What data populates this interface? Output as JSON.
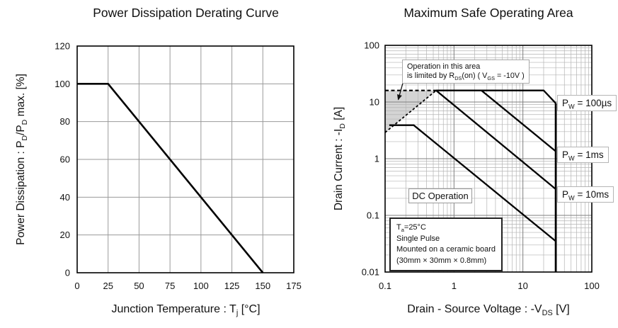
{
  "page": {
    "background": "#ffffff"
  },
  "colors": {
    "curve": "#000000",
    "frame": "#000000",
    "grid_left": "#9a9a9a",
    "grid_major": "#7f7f7f",
    "grid_minor": "#b4b4b4",
    "shade": "#d4d4d4",
    "box_border_light": "#a8a8a8",
    "box_border_dark": "#222222",
    "text": "#111111"
  },
  "chart_data": [
    {
      "type": "line",
      "scale": "linear",
      "title": "Power Dissipation Derating Curve",
      "xlabel": "Junction Temperature : Tj [°C]",
      "ylabel": "Power Dissipation : PD/PD max. [%]",
      "xlabel_parts": [
        {
          "t": "Junction Temperature : T"
        },
        {
          "s": "j"
        },
        {
          "t": " [°C]"
        }
      ],
      "ylabel_parts": [
        {
          "t": "Power Dissipation : P"
        },
        {
          "s": "D"
        },
        {
          "t": "/P"
        },
        {
          "s": "D"
        },
        {
          "t": " max. [%]"
        }
      ],
      "xlim": [
        0,
        175
      ],
      "ylim": [
        0,
        120
      ],
      "xticks": [
        0,
        25,
        50,
        75,
        100,
        125,
        150,
        175
      ],
      "yticks": [
        0,
        20,
        40,
        60,
        80,
        100,
        120
      ],
      "grid": "major",
      "legend_position": "none",
      "series": [
        {
          "name": "derating-curve",
          "points": [
            [
              0,
              100
            ],
            [
              25,
              100
            ],
            [
              150,
              0
            ]
          ]
        }
      ]
    },
    {
      "type": "line",
      "scale": "log-log",
      "title": "Maximum Safe Operating Area",
      "xlabel": "Drain - Source Voltage : -VDS [V]",
      "ylabel": "Drain Current : -ID [A]",
      "xlabel_parts": [
        {
          "t": "Drain - Source Voltage : -V"
        },
        {
          "s": "DS"
        },
        {
          "t": " [V]"
        }
      ],
      "ylabel_parts": [
        {
          "t": "Drain Current : -I"
        },
        {
          "s": "D"
        },
        {
          "t": " [A]"
        }
      ],
      "xlim": [
        0.1,
        100
      ],
      "ylim": [
        0.01,
        100
      ],
      "xticks": [
        0.1,
        1,
        10,
        100
      ],
      "yticks": [
        0.01,
        0.1,
        1,
        10,
        100
      ],
      "grid": "log-minor",
      "series": [
        {
          "name": "pw-100us",
          "label": "PW = 100µs",
          "label_parts": [
            {
              "t": "P"
            },
            {
              "s": "W"
            },
            {
              "t": " = 100µs"
            }
          ],
          "points": [
            [
              0.55,
              16
            ],
            [
              20,
              16
            ],
            [
              30,
              9.5
            ]
          ]
        },
        {
          "name": "pw-1ms",
          "label": "PW = 1ms",
          "label_parts": [
            {
              "t": "P"
            },
            {
              "s": "W"
            },
            {
              "t": " = 1ms"
            }
          ],
          "points": [
            [
              2.5,
              16
            ],
            [
              30,
              1.35
            ]
          ]
        },
        {
          "name": "pw-10ms",
          "label": "PW = 10ms",
          "label_parts": [
            {
              "t": "P"
            },
            {
              "s": "W"
            },
            {
              "t": " = 10ms"
            }
          ],
          "points": [
            [
              0.55,
              16
            ],
            [
              30,
              0.29
            ]
          ]
        },
        {
          "name": "dc-operation",
          "label": "DC Operation",
          "points": [
            [
              0.115,
              3.9
            ],
            [
              0.26,
              3.9
            ],
            [
              30,
              0.035
            ]
          ]
        },
        {
          "name": "voltage-limit-30v",
          "points": [
            [
              30,
              9.5
            ],
            [
              30,
              0.01
            ]
          ]
        }
      ],
      "dashed_lines": [
        {
          "name": "pulsed-current-limit-16a",
          "points": [
            [
              0.1,
              16
            ],
            [
              0.55,
              16
            ]
          ]
        },
        {
          "name": "rdson-limit-line",
          "points": [
            [
              0.1,
              2.9
            ],
            [
              0.55,
              16
            ]
          ]
        }
      ],
      "shaded_region": {
        "name": "rdson-limited-area",
        "points": [
          [
            0.1,
            16
          ],
          [
            0.55,
            16
          ],
          [
            0.1,
            2.9
          ]
        ],
        "fill": "#d4d4d4"
      },
      "annotations": {
        "operation_note": {
          "line1": "Operation in this area",
          "line2": "is limited by RDS(on) ( VGS = -10V )",
          "line2_parts": [
            {
              "t": "is limited by R"
            },
            {
              "s": "DS"
            },
            {
              "t": "(on) ( V"
            },
            {
              "s": "GS"
            },
            {
              "t": " = -10V )"
            }
          ]
        },
        "arrow": {
          "from": [
            0.187,
            25
          ],
          "to": [
            0.155,
            11
          ]
        },
        "dc_label": "DC Operation",
        "conditions": {
          "line1": "Ta=25°C",
          "line1_parts": [
            {
              "t": "T"
            },
            {
              "s": "a"
            },
            {
              "t": "=25°C"
            }
          ],
          "line2": "Single Pulse",
          "line3": "Mounted on a ceramic board",
          "line4": "(30mm × 30mm × 0.8mm)"
        }
      }
    }
  ]
}
